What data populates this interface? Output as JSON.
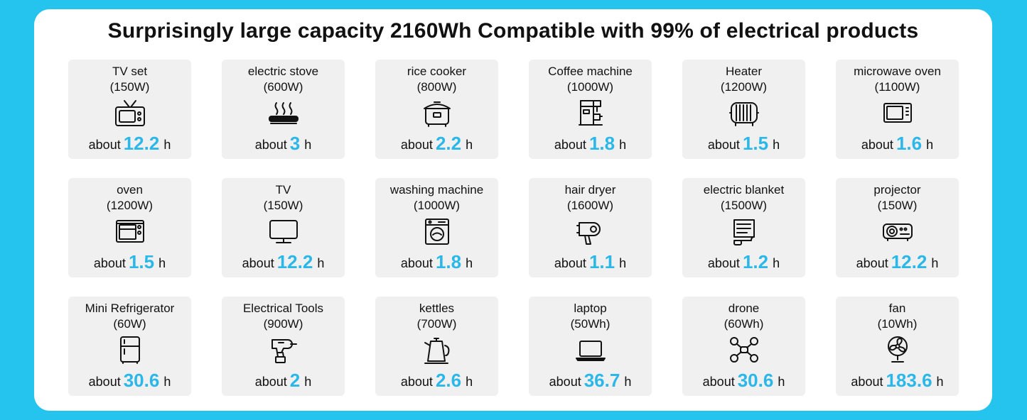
{
  "title": "Surprisingly large capacity 2160Wh Compatible with 99% of electrical products",
  "accent_color": "#2bb8e8",
  "background_color": "#25c4ee",
  "devices": [
    {
      "name": "TV set",
      "watts": "(150W)",
      "prefix": "about",
      "hours": "12.2",
      "unit": "h",
      "icon": "retro-tv-icon"
    },
    {
      "name": "electric stove",
      "watts": "(600W)",
      "prefix": "about",
      "hours": "3",
      "unit": "h",
      "icon": "stove-icon"
    },
    {
      "name": "rice cooker",
      "watts": "(800W)",
      "prefix": "about",
      "hours": "2.2",
      "unit": "h",
      "icon": "rice-cooker-icon"
    },
    {
      "name": "Coffee machine",
      "watts": "(1000W)",
      "prefix": "about",
      "hours": "1.8",
      "unit": "h",
      "icon": "coffee-machine-icon"
    },
    {
      "name": "Heater",
      "watts": "(1200W)",
      "prefix": "about",
      "hours": "1.5",
      "unit": "h",
      "icon": "heater-icon"
    },
    {
      "name": "microwave oven",
      "watts": "(1100W)",
      "prefix": "about",
      "hours": "1.6",
      "unit": "h",
      "icon": "microwave-icon"
    },
    {
      "name": "oven",
      "watts": "(1200W)",
      "prefix": "about",
      "hours": "1.5",
      "unit": "h",
      "icon": "oven-icon"
    },
    {
      "name": "TV",
      "watts": "(150W)",
      "prefix": "about",
      "hours": "12.2",
      "unit": "h",
      "icon": "monitor-tv-icon"
    },
    {
      "name": "washing machine",
      "watts": "(1000W)",
      "prefix": "about",
      "hours": "1.8",
      "unit": "h",
      "icon": "washing-machine-icon"
    },
    {
      "name": "hair dryer",
      "watts": "(1600W)",
      "prefix": "about",
      "hours": "1.1",
      "unit": "h",
      "icon": "hair-dryer-icon"
    },
    {
      "name": "electric blanket",
      "watts": "(1500W)",
      "prefix": "about",
      "hours": "1.2",
      "unit": "h",
      "icon": "electric-blanket-icon"
    },
    {
      "name": "projector",
      "watts": "(150W)",
      "prefix": "about",
      "hours": "12.2",
      "unit": "h",
      "icon": "projector-icon"
    },
    {
      "name": "Mini Refrigerator",
      "watts": "(60W)",
      "prefix": "about",
      "hours": "30.6",
      "unit": "h",
      "icon": "refrigerator-icon"
    },
    {
      "name": "Electrical Tools",
      "watts": "(900W)",
      "prefix": "about",
      "hours": "2",
      "unit": "h",
      "icon": "power-drill-icon"
    },
    {
      "name": "kettles",
      "watts": "(700W)",
      "prefix": "about",
      "hours": "2.6",
      "unit": "h",
      "icon": "kettle-icon"
    },
    {
      "name": "laptop",
      "watts": "(50Wh)",
      "prefix": "about",
      "hours": "36.7",
      "unit": "h",
      "icon": "laptop-icon"
    },
    {
      "name": "drone",
      "watts": "(60Wh)",
      "prefix": "about",
      "hours": "30.6",
      "unit": "h",
      "icon": "drone-icon"
    },
    {
      "name": "fan",
      "watts": "(10Wh)",
      "prefix": "about",
      "hours": "183.6",
      "unit": "h",
      "icon": "fan-icon"
    }
  ]
}
